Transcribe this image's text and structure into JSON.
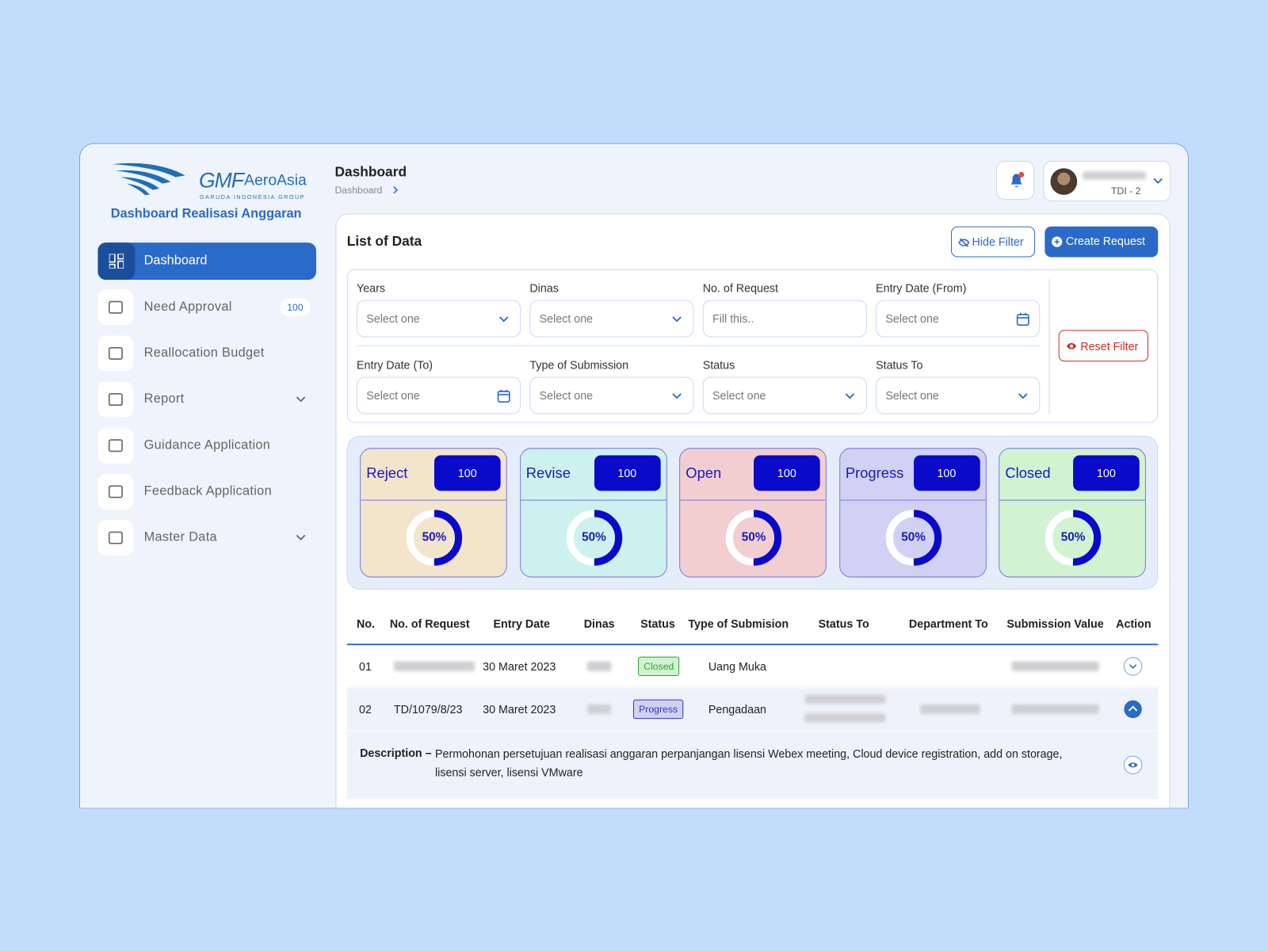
{
  "brand": {
    "logo_main": "GMF",
    "logo_sub": "AeroAsia",
    "logo_tag": "GARUDA INDONESIA GROUP",
    "app_title": "Dashboard Realisasi Anggaran"
  },
  "sidebar": {
    "items": [
      {
        "label": "Dashboard",
        "active": true
      },
      {
        "label": "Need Approval",
        "badge": 100
      },
      {
        "label": "Reallocation Budget"
      },
      {
        "label": "Report",
        "has_submenu": true
      },
      {
        "label": "Guidance Application"
      },
      {
        "label": "Feedback Application"
      },
      {
        "label": "Master Data",
        "has_submenu": true
      }
    ]
  },
  "header": {
    "title": "Dashboard",
    "breadcrumb": "Dashboard",
    "user_role": "TDI - 2"
  },
  "panel": {
    "title": "List of Data",
    "hide_filter": "Hide Filter",
    "create_request": "Create Request",
    "reset_filter": "Reset Filter"
  },
  "filters": [
    {
      "label": "Years",
      "placeholder": "Select one",
      "kind": "select"
    },
    {
      "label": "Dinas",
      "placeholder": "Select one",
      "kind": "select"
    },
    {
      "label": "No. of Request",
      "placeholder": "Fill this..",
      "kind": "text"
    },
    {
      "label": "Entry Date (From)",
      "placeholder": "Select one",
      "kind": "date"
    },
    {
      "label": "Entry Date (To)",
      "placeholder": "Select one",
      "kind": "date"
    },
    {
      "label": "Type of Submission",
      "placeholder": "Select one",
      "kind": "select"
    },
    {
      "label": "Status",
      "placeholder": "Select one",
      "kind": "select"
    },
    {
      "label": "Status To",
      "placeholder": "Select one",
      "kind": "select"
    }
  ],
  "status_cards": [
    {
      "name": "Reject",
      "count": 100,
      "percent": 50,
      "percent_label": "50%",
      "color": "#f3e4cc",
      "accent": "#c0392b"
    },
    {
      "name": "Revise",
      "count": 100,
      "percent": 50,
      "percent_label": "50%",
      "color": "#cdf1ef",
      "accent": "#1f8f8a"
    },
    {
      "name": "Open",
      "count": 100,
      "percent": 50,
      "percent_label": "50%",
      "color": "#f2ced1",
      "accent": "#c0392b"
    },
    {
      "name": "Progress",
      "count": 100,
      "percent": 50,
      "percent_label": "50%",
      "color": "#d1d1f4",
      "accent": "#3434c2"
    },
    {
      "name": "Closed",
      "count": 100,
      "percent": 50,
      "percent_label": "50%",
      "color": "#d1f3d1",
      "accent": "#2ea42e"
    }
  ],
  "table": {
    "columns": [
      "No.",
      "No. of Request",
      "Entry Date",
      "Dinas",
      "Status",
      "Type of Submision",
      "Status To",
      "Department To",
      "Submission Value",
      "Action"
    ],
    "rows": [
      {
        "cells": [
          "01",
          null,
          "30 Maret 2023",
          null,
          "Closed",
          "Uang Muka",
          null,
          null,
          null
        ],
        "redacted": [
          1,
          3,
          8
        ],
        "expanded": false
      },
      {
        "cells": [
          "02",
          "TD/1079/8/23",
          "30 Maret 2023",
          null,
          "Progress",
          "Pengadaan",
          null,
          null,
          null
        ],
        "redacted": [
          3,
          6,
          7,
          8
        ],
        "expanded": true,
        "description": {
          "label": "Description –",
          "text": "Permohonan persetujuan realisasi anggaran perpanjangan lisensi Webex meeting, Cloud device registration, add on storage, lisensi server, lisensi VMware"
        }
      }
    ]
  }
}
